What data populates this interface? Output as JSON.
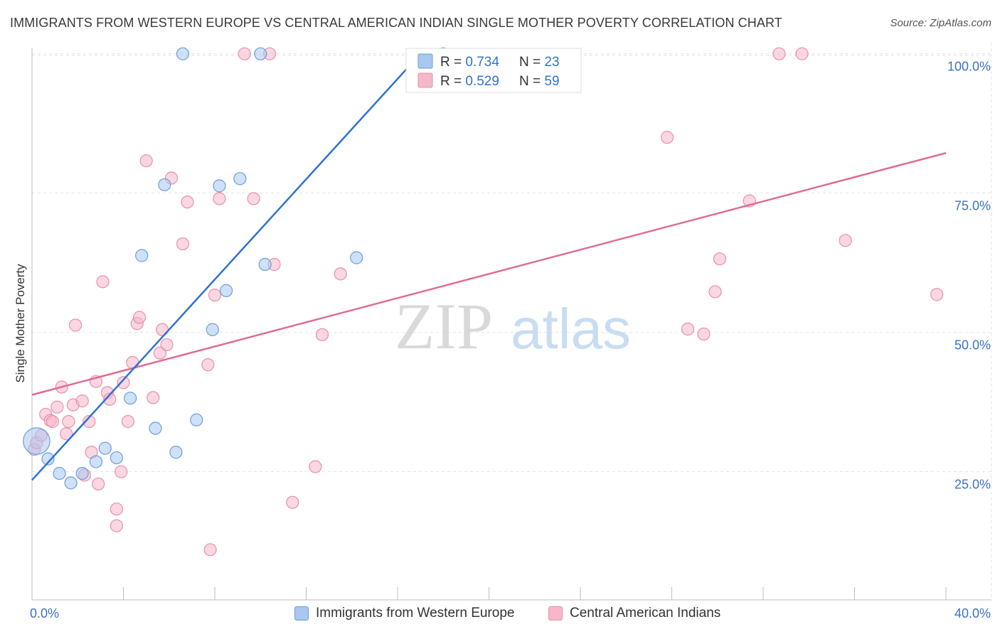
{
  "title": "IMMIGRANTS FROM WESTERN EUROPE VS CENTRAL AMERICAN INDIAN SINGLE MOTHER POVERTY CORRELATION CHART",
  "source": "Source: ZipAtlas.com",
  "watermark": {
    "zip": "ZIP",
    "atlas": "atlas"
  },
  "colors": {
    "blue_fill": "#a8c8f0",
    "blue_stroke": "#6b9fd8",
    "blue_line": "#2f72d2",
    "pink_fill": "#f6b7c9",
    "pink_stroke": "#ea8fab",
    "pink_line": "#e06a93",
    "tick_text": "#3a72c4",
    "grid": "#e2e2e2"
  },
  "stats": {
    "blue": {
      "r_label": "R = ",
      "r_value": "0.734",
      "n_label": "N = ",
      "n_value": "23"
    },
    "pink": {
      "r_label": "R = ",
      "r_value": "0.529",
      "n_label": "N = ",
      "n_value": "59"
    }
  },
  "legend": {
    "blue_label": "Immigrants from Western Europe",
    "pink_label": "Central American Indians"
  },
  "chart_data": {
    "type": "scatter",
    "title": "IMMIGRANTS FROM WESTERN EUROPE VS CENTRAL AMERICAN INDIAN SINGLE MOTHER POVERTY CORRELATION CHART",
    "xlabel": "",
    "ylabel": "Single Mother Poverty",
    "xlim": [
      0,
      40
    ],
    "ylim": [
      2,
      102
    ],
    "x_tick_labels": [
      {
        "value": 0,
        "label": "0.0%"
      },
      {
        "value": 40,
        "label": "40.0%"
      }
    ],
    "y_tick_labels": [
      {
        "value": 25,
        "label": "25.0%"
      },
      {
        "value": 50,
        "label": "50.0%"
      },
      {
        "value": 75,
        "label": "75.0%"
      },
      {
        "value": 100,
        "label": "100.0%"
      }
    ],
    "x_minor_ticks": [
      0,
      4,
      8,
      12,
      16,
      20,
      24,
      28,
      32,
      36,
      40
    ],
    "y_gridlines": [
      25,
      50,
      75,
      100
    ],
    "series": [
      {
        "name": "Immigrants from Western Europe",
        "R": 0.734,
        "N": 23,
        "trend": {
          "x": [
            0,
            17.0
          ],
          "y": [
            23.5,
            100
          ]
        },
        "points": [
          {
            "x": 0.2,
            "y": 30.5,
            "size": 2.2
          },
          {
            "x": 0.7,
            "y": 27.3
          },
          {
            "x": 1.2,
            "y": 24.7
          },
          {
            "x": 1.7,
            "y": 23.0
          },
          {
            "x": 2.2,
            "y": 24.7
          },
          {
            "x": 2.8,
            "y": 26.8
          },
          {
            "x": 3.2,
            "y": 29.2
          },
          {
            "x": 3.7,
            "y": 27.5
          },
          {
            "x": 4.3,
            "y": 38.2
          },
          {
            "x": 4.8,
            "y": 63.8
          },
          {
            "x": 5.4,
            "y": 32.8
          },
          {
            "x": 5.8,
            "y": 76.5
          },
          {
            "x": 6.3,
            "y": 28.5
          },
          {
            "x": 6.6,
            "y": 100
          },
          {
            "x": 7.2,
            "y": 34.3
          },
          {
            "x": 7.9,
            "y": 50.5
          },
          {
            "x": 8.2,
            "y": 76.3
          },
          {
            "x": 8.5,
            "y": 57.5
          },
          {
            "x": 9.1,
            "y": 77.6
          },
          {
            "x": 10.0,
            "y": 100
          },
          {
            "x": 10.2,
            "y": 62.2
          },
          {
            "x": 14.2,
            "y": 63.4
          },
          {
            "x": 18.0,
            "y": 100
          }
        ]
      },
      {
        "name": "Central American Indians",
        "R": 0.529,
        "N": 59,
        "trend": {
          "x": [
            0,
            40
          ],
          "y": [
            38.8,
            82.2
          ]
        },
        "points": [
          {
            "x": 0.1,
            "y": 29.0
          },
          {
            "x": 0.2,
            "y": 30.2
          },
          {
            "x": 0.4,
            "y": 31.5
          },
          {
            "x": 0.6,
            "y": 35.3
          },
          {
            "x": 0.8,
            "y": 34.2
          },
          {
            "x": 0.9,
            "y": 34.0
          },
          {
            "x": 1.1,
            "y": 36.6
          },
          {
            "x": 1.3,
            "y": 40.2
          },
          {
            "x": 1.5,
            "y": 31.8
          },
          {
            "x": 1.6,
            "y": 34.0
          },
          {
            "x": 1.8,
            "y": 37.0
          },
          {
            "x": 1.9,
            "y": 51.3
          },
          {
            "x": 2.2,
            "y": 37.7
          },
          {
            "x": 2.3,
            "y": 24.4
          },
          {
            "x": 2.5,
            "y": 34.0
          },
          {
            "x": 2.6,
            "y": 28.5
          },
          {
            "x": 2.8,
            "y": 41.2
          },
          {
            "x": 2.9,
            "y": 22.8
          },
          {
            "x": 3.1,
            "y": 59.1
          },
          {
            "x": 3.3,
            "y": 39.2
          },
          {
            "x": 3.4,
            "y": 38.0
          },
          {
            "x": 3.7,
            "y": 18.3
          },
          {
            "x": 3.7,
            "y": 15.3
          },
          {
            "x": 3.9,
            "y": 25.0
          },
          {
            "x": 4.0,
            "y": 41.0
          },
          {
            "x": 4.2,
            "y": 34.0
          },
          {
            "x": 4.4,
            "y": 44.6
          },
          {
            "x": 4.6,
            "y": 51.6
          },
          {
            "x": 4.7,
            "y": 52.7
          },
          {
            "x": 5.0,
            "y": 80.8
          },
          {
            "x": 5.3,
            "y": 38.3
          },
          {
            "x": 5.6,
            "y": 46.3
          },
          {
            "x": 5.7,
            "y": 50.5
          },
          {
            "x": 5.9,
            "y": 47.8
          },
          {
            "x": 6.1,
            "y": 77.7
          },
          {
            "x": 6.6,
            "y": 65.9
          },
          {
            "x": 6.8,
            "y": 73.4
          },
          {
            "x": 7.7,
            "y": 44.2
          },
          {
            "x": 7.8,
            "y": 11.0
          },
          {
            "x": 8.0,
            "y": 56.7
          },
          {
            "x": 8.2,
            "y": 74.0
          },
          {
            "x": 9.3,
            "y": 100
          },
          {
            "x": 9.7,
            "y": 74.0
          },
          {
            "x": 10.4,
            "y": 100
          },
          {
            "x": 10.6,
            "y": 62.2
          },
          {
            "x": 11.4,
            "y": 19.5
          },
          {
            "x": 12.4,
            "y": 25.9
          },
          {
            "x": 12.7,
            "y": 49.6
          },
          {
            "x": 13.5,
            "y": 60.5
          },
          {
            "x": 27.8,
            "y": 85.0
          },
          {
            "x": 28.7,
            "y": 50.6
          },
          {
            "x": 29.4,
            "y": 49.7
          },
          {
            "x": 29.9,
            "y": 57.3
          },
          {
            "x": 30.1,
            "y": 63.2
          },
          {
            "x": 31.4,
            "y": 73.6
          },
          {
            "x": 32.7,
            "y": 100
          },
          {
            "x": 33.7,
            "y": 100
          },
          {
            "x": 35.6,
            "y": 66.5
          },
          {
            "x": 39.6,
            "y": 56.8
          }
        ]
      }
    ]
  }
}
